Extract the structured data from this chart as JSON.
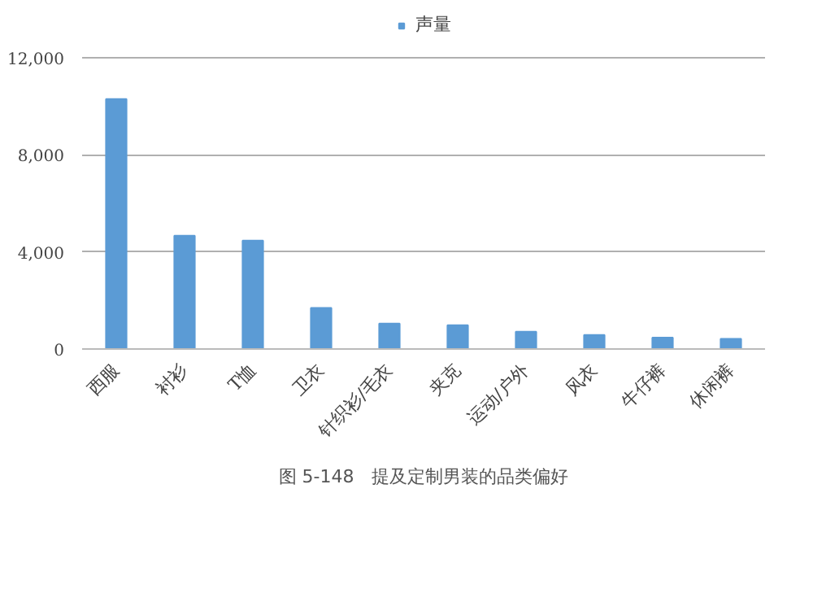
{
  "chart_data": {
    "type": "bar",
    "categories": [
      "西服",
      "衬衫",
      "T恤",
      "卫衣",
      "针织衫/毛衣",
      "夹克",
      "运动/户外",
      "风衣",
      "牛仔裤",
      "休闲裤"
    ],
    "series": [
      {
        "name": "声量",
        "color": "#5b9bd5",
        "values": [
          10300,
          4670,
          4470,
          1690,
          1050,
          980,
          710,
          580,
          470,
          420
        ]
      }
    ],
    "ylim": [
      0,
      12000
    ],
    "yticks": [
      0,
      {
        "value": 4000,
        "label": "4,000"
      },
      {
        "value": 8000,
        "label": "8,000"
      },
      {
        "value": 12000,
        "label": "12,000"
      }
    ],
    "grid": "y",
    "legend": "top",
    "annotations": [
      "图 5-148　提及定制男装的品类偏好"
    ]
  }
}
